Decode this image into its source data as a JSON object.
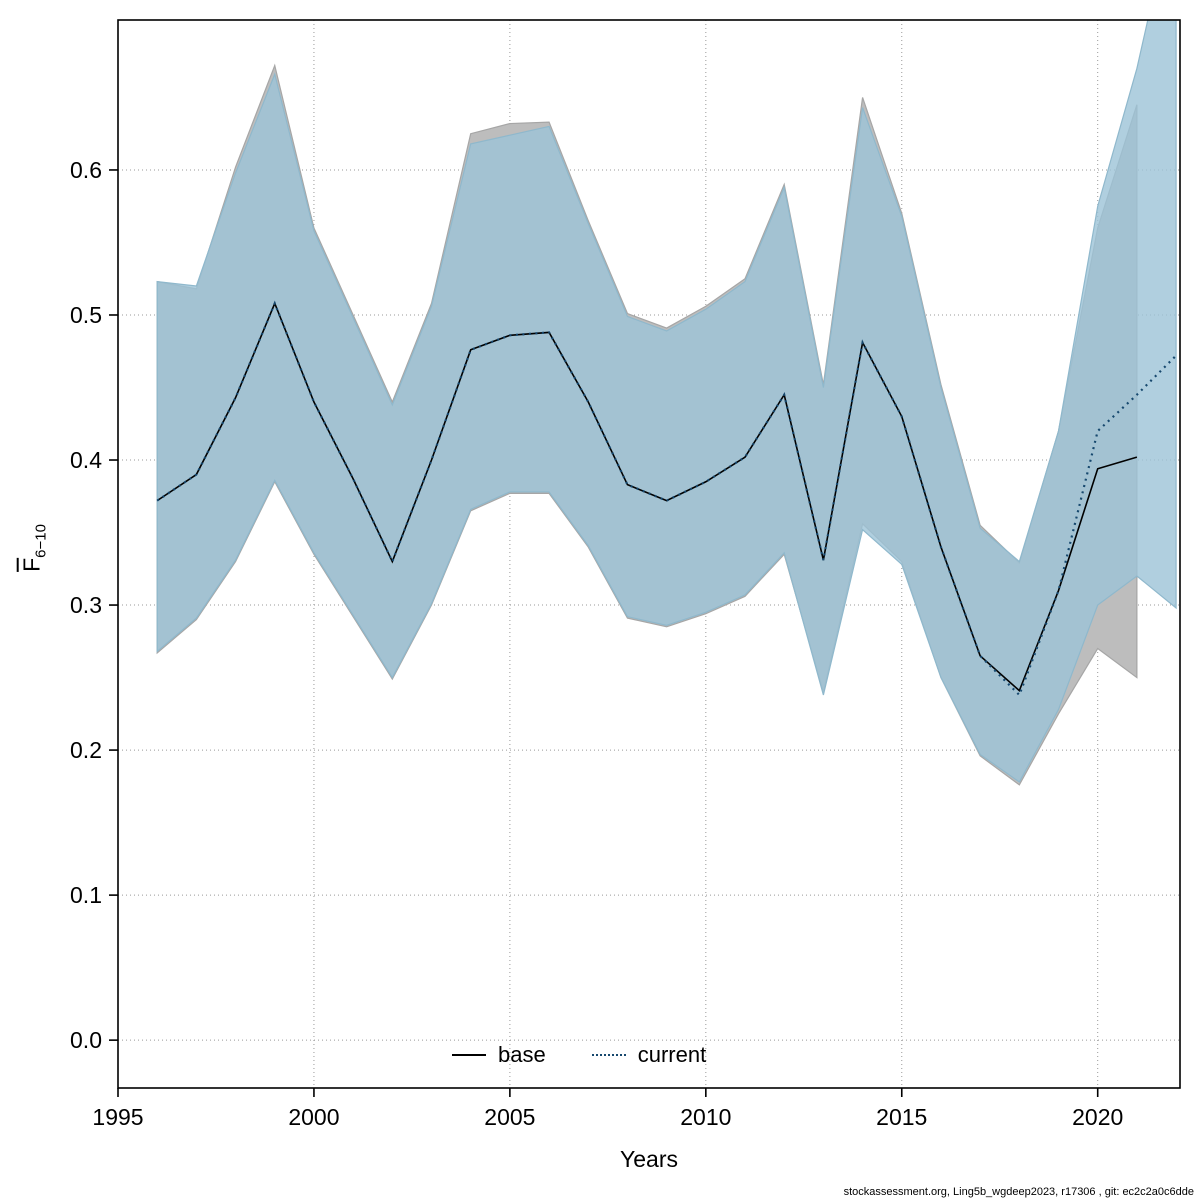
{
  "axes": {
    "xlabel": "Years",
    "ylabel_main": "F",
    "ylabel_sub": "6−10"
  },
  "footer": {
    "text": "stockassessment.org, Ling5b_wgdeep2023, r17306 , git: ec2c2a0c6dde"
  },
  "colors": {
    "background": "#ffffff",
    "base_band": "#bdbdbd",
    "current_band": "#9cc3d7",
    "base_line": "#000000",
    "current_line": "#16486e",
    "grid": "#999999"
  },
  "chart_data": {
    "type": "area",
    "title": "",
    "xlabel": "Years",
    "ylabel": "F̄ 6−10",
    "xlim": [
      1995,
      2022.1
    ],
    "ylim": [
      -0.033,
      0.7034
    ],
    "xticks": [
      1995,
      2000,
      2005,
      2010,
      2015,
      2020
    ],
    "xtick_labels": [
      "1995",
      "2000",
      "2005",
      "2010",
      "2015",
      "2020"
    ],
    "yticks": [
      0.0,
      0.1,
      0.2,
      0.3,
      0.4,
      0.5,
      0.6
    ],
    "ytick_labels": [
      "0.0",
      "0.1",
      "0.2",
      "0.3",
      "0.4",
      "0.5",
      "0.6"
    ],
    "grid": true,
    "legend_position": "bottom-inside",
    "series": [
      {
        "name": "base",
        "color": "#000000",
        "width": 1.6,
        "dash": "",
        "band_color": "#bdbdbd",
        "band_opacity": 1,
        "band_edge": "#a6a6a6",
        "x": [
          1996,
          1997,
          1998,
          1999,
          2000,
          2001,
          2002,
          2003,
          2004,
          2005,
          2006,
          2007,
          2008,
          2009,
          2010,
          2011,
          2012,
          2013,
          2014,
          2015,
          2016,
          2017,
          2018,
          2019,
          2020,
          2021
        ],
        "y": [
          0.372,
          0.39,
          0.443,
          0.508,
          0.44,
          0.387,
          0.33,
          0.4,
          0.476,
          0.486,
          0.488,
          0.44,
          0.383,
          0.372,
          0.385,
          0.402,
          0.445,
          0.331,
          0.481,
          0.43,
          0.34,
          0.265,
          0.241,
          0.31,
          0.394,
          0.402
        ],
        "hi": [
          0.523,
          0.518,
          0.602,
          0.672,
          0.56,
          0.5,
          0.44,
          0.508,
          0.625,
          0.632,
          0.633,
          0.565,
          0.501,
          0.491,
          0.506,
          0.525,
          0.59,
          0.452,
          0.65,
          0.57,
          0.452,
          0.355,
          0.329,
          0.42,
          0.56,
          0.645
        ],
        "lo": [
          0.267,
          0.29,
          0.33,
          0.385,
          0.335,
          0.292,
          0.249,
          0.3,
          0.365,
          0.377,
          0.377,
          0.34,
          0.291,
          0.285,
          0.294,
          0.306,
          0.335,
          0.24,
          0.356,
          0.33,
          0.25,
          0.196,
          0.176,
          0.225,
          0.27,
          0.25
        ]
      },
      {
        "name": "current",
        "color": "#16486e",
        "width": 2.2,
        "dash": "2 4.5",
        "band_color": "#9cc3d7",
        "band_opacity": 0.8,
        "band_edge": "#8fb8cc",
        "x": [
          1996,
          1997,
          1998,
          1999,
          2000,
          2001,
          2002,
          2003,
          2004,
          2005,
          2006,
          2007,
          2008,
          2009,
          2010,
          2011,
          2012,
          2013,
          2014,
          2015,
          2016,
          2017,
          2018,
          2019,
          2020,
          2021,
          2022
        ],
        "y": [
          0.372,
          0.39,
          0.443,
          0.508,
          0.44,
          0.387,
          0.33,
          0.4,
          0.476,
          0.486,
          0.488,
          0.44,
          0.383,
          0.372,
          0.385,
          0.402,
          0.445,
          0.331,
          0.481,
          0.43,
          0.34,
          0.265,
          0.238,
          0.31,
          0.42,
          0.445,
          0.472
        ],
        "hi": [
          0.523,
          0.52,
          0.598,
          0.666,
          0.558,
          0.498,
          0.438,
          0.506,
          0.618,
          0.624,
          0.63,
          0.563,
          0.499,
          0.489,
          0.504,
          0.523,
          0.588,
          0.45,
          0.643,
          0.568,
          0.45,
          0.353,
          0.33,
          0.42,
          0.575,
          0.67,
          0.79
        ],
        "lo": [
          0.268,
          0.291,
          0.331,
          0.386,
          0.336,
          0.293,
          0.25,
          0.301,
          0.366,
          0.378,
          0.378,
          0.341,
          0.292,
          0.286,
          0.295,
          0.307,
          0.336,
          0.238,
          0.352,
          0.328,
          0.25,
          0.197,
          0.178,
          0.228,
          0.3,
          0.32,
          0.298
        ]
      }
    ]
  }
}
